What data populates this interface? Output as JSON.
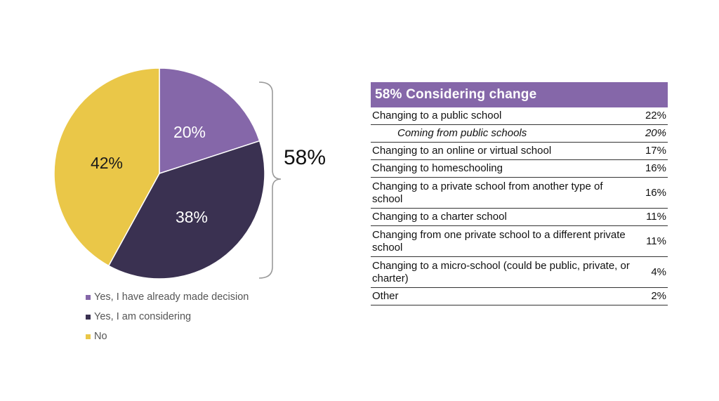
{
  "chart_data": [
    {
      "type": "pie",
      "slices": [
        {
          "label": "Yes, I have already made decision",
          "value": 20,
          "display": "20%",
          "color": "#8567a9"
        },
        {
          "label": "Yes, I am considering",
          "value": 38,
          "display": "38%",
          "color": "#3a3151"
        },
        {
          "label": "No",
          "value": 42,
          "display": "42%",
          "color": "#eac748"
        }
      ],
      "bracket_label": "58%",
      "legend_position": "bottom-left"
    },
    {
      "type": "table",
      "title": "58% Considering change",
      "header_color": "#8567a9",
      "rows": [
        {
          "label": "Changing to a public school",
          "value": "22%",
          "sub": false
        },
        {
          "label": "Coming from public schools",
          "value": "20%",
          "sub": true
        },
        {
          "label": "Changing to an online or virtual school",
          "value": "17%",
          "sub": false
        },
        {
          "label": "Changing to homeschooling",
          "value": "16%",
          "sub": false
        },
        {
          "label": "Changing to a private school from another type of school",
          "value": "16%",
          "sub": false
        },
        {
          "label": "Changing to a charter school",
          "value": "11%",
          "sub": false
        },
        {
          "label": "Changing from one private school to a different private school",
          "value": "11%",
          "sub": false
        },
        {
          "label": "Changing to a micro-school (could be public, private, or charter)",
          "value": "4%",
          "sub": false
        },
        {
          "label": "Other",
          "value": "2%",
          "sub": false
        }
      ]
    }
  ]
}
